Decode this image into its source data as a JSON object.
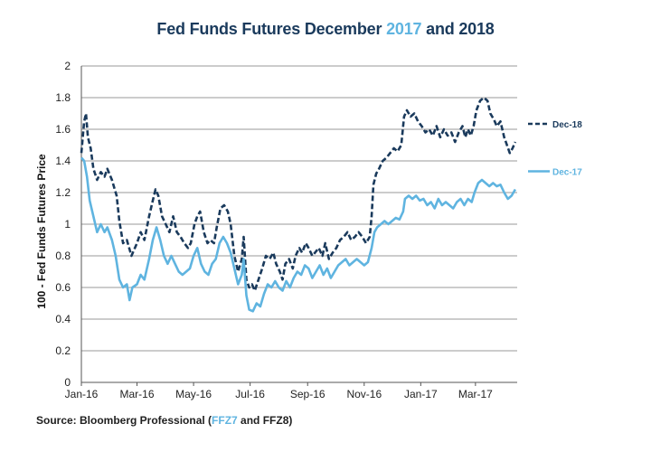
{
  "title": {
    "part1": "Fed Funds Futures December ",
    "part2": "2017",
    "part3": " and 2018"
  },
  "source": {
    "prefix": "Source: Bloomberg Professional (",
    "tickers": "FFZ7",
    "suffix": " and FFZ8)"
  },
  "colors": {
    "dec18": "#1a3a5c",
    "dec17": "#5fb4e0",
    "grid": "#9a9a9a"
  },
  "chart_data": {
    "type": "line",
    "title": "Fed Funds Futures December 2017 and 2018",
    "ylabel": "100 - Fed Funds Futures Price",
    "xlabel": "",
    "ylim": [
      0,
      2
    ],
    "yticks": [
      0,
      0.2,
      0.4,
      0.6,
      0.8,
      1,
      1.2,
      1.4,
      1.6,
      1.8,
      2
    ],
    "ytick_labels": [
      "0",
      "0.2",
      "0.4",
      "0.6",
      "0.8",
      "1",
      "1.2",
      "1.4",
      "1.6",
      "1.8",
      "2"
    ],
    "xtick_labels": [
      "Jan-16",
      "Mar-16",
      "May-16",
      "Jul-16",
      "Sep-16",
      "Nov-16",
      "Jan-17",
      "Mar-17"
    ],
    "xtick_dates": [
      "2016-01-01",
      "2016-03-01",
      "2016-05-01",
      "2016-07-01",
      "2016-09-01",
      "2016-11-01",
      "2017-01-01",
      "2017-03-01"
    ],
    "xlim": [
      "2016-01-01",
      "2017-04-15"
    ],
    "grid": "horizontal",
    "legend_placement": "right",
    "series": [
      {
        "name": "Dec-18",
        "style": "dashed",
        "color": "#1a3a5c",
        "points": [
          [
            "2016-01-01",
            1.45
          ],
          [
            "2016-01-04",
            1.65
          ],
          [
            "2016-01-06",
            1.7
          ],
          [
            "2016-01-08",
            1.55
          ],
          [
            "2016-01-11",
            1.48
          ],
          [
            "2016-01-14",
            1.35
          ],
          [
            "2016-01-18",
            1.28
          ],
          [
            "2016-01-22",
            1.33
          ],
          [
            "2016-01-26",
            1.3
          ],
          [
            "2016-01-29",
            1.35
          ],
          [
            "2016-02-03",
            1.28
          ],
          [
            "2016-02-08",
            1.18
          ],
          [
            "2016-02-11",
            1.02
          ],
          [
            "2016-02-15",
            0.88
          ],
          [
            "2016-02-19",
            0.9
          ],
          [
            "2016-02-24",
            0.8
          ],
          [
            "2016-03-01",
            0.88
          ],
          [
            "2016-03-05",
            0.95
          ],
          [
            "2016-03-09",
            0.9
          ],
          [
            "2016-03-14",
            1.05
          ],
          [
            "2016-03-18",
            1.15
          ],
          [
            "2016-03-21",
            1.22
          ],
          [
            "2016-03-24",
            1.18
          ],
          [
            "2016-03-28",
            1.05
          ],
          [
            "2016-04-01",
            1.0
          ],
          [
            "2016-04-05",
            0.95
          ],
          [
            "2016-04-09",
            1.05
          ],
          [
            "2016-04-13",
            0.95
          ],
          [
            "2016-04-17",
            0.92
          ],
          [
            "2016-04-21",
            0.88
          ],
          [
            "2016-04-25",
            0.85
          ],
          [
            "2016-04-28",
            0.88
          ],
          [
            "2016-05-02",
            1.0
          ],
          [
            "2016-05-05",
            1.05
          ],
          [
            "2016-05-08",
            1.08
          ],
          [
            "2016-05-12",
            0.95
          ],
          [
            "2016-05-16",
            0.88
          ],
          [
            "2016-05-19",
            0.9
          ],
          [
            "2016-05-23",
            0.88
          ],
          [
            "2016-05-26",
            0.98
          ],
          [
            "2016-05-30",
            1.1
          ],
          [
            "2016-06-03",
            1.12
          ],
          [
            "2016-06-07",
            1.08
          ],
          [
            "2016-06-10",
            1.0
          ],
          [
            "2016-06-14",
            0.8
          ],
          [
            "2016-06-18",
            0.7
          ],
          [
            "2016-06-22",
            0.78
          ],
          [
            "2016-06-24",
            0.92
          ],
          [
            "2016-06-27",
            0.65
          ],
          [
            "2016-06-30",
            0.6
          ],
          [
            "2016-07-03",
            0.62
          ],
          [
            "2016-07-06",
            0.58
          ],
          [
            "2016-07-10",
            0.65
          ],
          [
            "2016-07-14",
            0.72
          ],
          [
            "2016-07-18",
            0.8
          ],
          [
            "2016-07-22",
            0.78
          ],
          [
            "2016-07-26",
            0.82
          ],
          [
            "2016-07-29",
            0.75
          ],
          [
            "2016-08-02",
            0.7
          ],
          [
            "2016-08-05",
            0.65
          ],
          [
            "2016-08-08",
            0.75
          ],
          [
            "2016-08-12",
            0.78
          ],
          [
            "2016-08-16",
            0.72
          ],
          [
            "2016-08-19",
            0.8
          ],
          [
            "2016-08-23",
            0.85
          ],
          [
            "2016-08-26",
            0.82
          ],
          [
            "2016-08-30",
            0.88
          ],
          [
            "2016-09-02",
            0.85
          ],
          [
            "2016-09-06",
            0.8
          ],
          [
            "2016-09-09",
            0.82
          ],
          [
            "2016-09-13",
            0.85
          ],
          [
            "2016-09-17",
            0.8
          ],
          [
            "2016-09-20",
            0.88
          ],
          [
            "2016-09-24",
            0.78
          ],
          [
            "2016-09-28",
            0.82
          ],
          [
            "2016-10-02",
            0.85
          ],
          [
            "2016-10-06",
            0.9
          ],
          [
            "2016-10-10",
            0.92
          ],
          [
            "2016-10-14",
            0.95
          ],
          [
            "2016-10-18",
            0.9
          ],
          [
            "2016-10-22",
            0.92
          ],
          [
            "2016-10-26",
            0.95
          ],
          [
            "2016-10-30",
            0.92
          ],
          [
            "2016-11-03",
            0.88
          ],
          [
            "2016-11-07",
            0.92
          ],
          [
            "2016-11-09",
            1.05
          ],
          [
            "2016-11-11",
            1.25
          ],
          [
            "2016-11-14",
            1.32
          ],
          [
            "2016-11-17",
            1.35
          ],
          [
            "2016-11-21",
            1.4
          ],
          [
            "2016-11-25",
            1.42
          ],
          [
            "2016-11-29",
            1.45
          ],
          [
            "2016-12-03",
            1.48
          ],
          [
            "2016-12-07",
            1.46
          ],
          [
            "2016-12-11",
            1.5
          ],
          [
            "2016-12-14",
            1.68
          ],
          [
            "2016-12-17",
            1.72
          ],
          [
            "2016-12-21",
            1.68
          ],
          [
            "2016-12-25",
            1.7
          ],
          [
            "2016-12-29",
            1.65
          ],
          [
            "2017-01-02",
            1.62
          ],
          [
            "2017-01-06",
            1.58
          ],
          [
            "2017-01-10",
            1.6
          ],
          [
            "2017-01-14",
            1.56
          ],
          [
            "2017-01-18",
            1.62
          ],
          [
            "2017-01-22",
            1.55
          ],
          [
            "2017-01-26",
            1.6
          ],
          [
            "2017-01-30",
            1.56
          ],
          [
            "2017-02-03",
            1.58
          ],
          [
            "2017-02-07",
            1.52
          ],
          [
            "2017-02-11",
            1.58
          ],
          [
            "2017-02-15",
            1.62
          ],
          [
            "2017-02-18",
            1.55
          ],
          [
            "2017-02-21",
            1.6
          ],
          [
            "2017-02-24",
            1.56
          ],
          [
            "2017-02-27",
            1.62
          ],
          [
            "2017-03-02",
            1.72
          ],
          [
            "2017-03-06",
            1.78
          ],
          [
            "2017-03-10",
            1.8
          ],
          [
            "2017-03-14",
            1.78
          ],
          [
            "2017-03-17",
            1.7
          ],
          [
            "2017-03-21",
            1.66
          ],
          [
            "2017-03-24",
            1.62
          ],
          [
            "2017-03-28",
            1.65
          ],
          [
            "2017-04-01",
            1.55
          ],
          [
            "2017-04-04",
            1.5
          ],
          [
            "2017-04-07",
            1.45
          ],
          [
            "2017-04-10",
            1.48
          ],
          [
            "2017-04-13",
            1.52
          ]
        ]
      },
      {
        "name": "Dec-17",
        "style": "solid",
        "color": "#5fb4e0",
        "points": [
          [
            "2016-01-01",
            1.42
          ],
          [
            "2016-01-04",
            1.4
          ],
          [
            "2016-01-07",
            1.3
          ],
          [
            "2016-01-10",
            1.15
          ],
          [
            "2016-01-14",
            1.05
          ],
          [
            "2016-01-18",
            0.95
          ],
          [
            "2016-01-22",
            1.0
          ],
          [
            "2016-01-26",
            0.95
          ],
          [
            "2016-01-29",
            0.98
          ],
          [
            "2016-02-03",
            0.9
          ],
          [
            "2016-02-07",
            0.8
          ],
          [
            "2016-02-11",
            0.65
          ],
          [
            "2016-02-15",
            0.6
          ],
          [
            "2016-02-19",
            0.62
          ],
          [
            "2016-02-22",
            0.52
          ],
          [
            "2016-02-25",
            0.6
          ],
          [
            "2016-03-01",
            0.62
          ],
          [
            "2016-03-05",
            0.68
          ],
          [
            "2016-03-09",
            0.65
          ],
          [
            "2016-03-14",
            0.78
          ],
          [
            "2016-03-18",
            0.9
          ],
          [
            "2016-03-22",
            0.98
          ],
          [
            "2016-03-26",
            0.9
          ],
          [
            "2016-03-30",
            0.8
          ],
          [
            "2016-04-03",
            0.75
          ],
          [
            "2016-04-07",
            0.8
          ],
          [
            "2016-04-11",
            0.75
          ],
          [
            "2016-04-15",
            0.7
          ],
          [
            "2016-04-19",
            0.68
          ],
          [
            "2016-04-23",
            0.7
          ],
          [
            "2016-04-27",
            0.72
          ],
          [
            "2016-05-01",
            0.8
          ],
          [
            "2016-05-05",
            0.85
          ],
          [
            "2016-05-09",
            0.75
          ],
          [
            "2016-05-13",
            0.7
          ],
          [
            "2016-05-17",
            0.68
          ],
          [
            "2016-05-21",
            0.75
          ],
          [
            "2016-05-25",
            0.78
          ],
          [
            "2016-05-29",
            0.88
          ],
          [
            "2016-06-02",
            0.92
          ],
          [
            "2016-06-06",
            0.88
          ],
          [
            "2016-06-10",
            0.82
          ],
          [
            "2016-06-14",
            0.72
          ],
          [
            "2016-06-18",
            0.62
          ],
          [
            "2016-06-22",
            0.68
          ],
          [
            "2016-06-24",
            0.78
          ],
          [
            "2016-06-27",
            0.55
          ],
          [
            "2016-06-30",
            0.46
          ],
          [
            "2016-07-04",
            0.45
          ],
          [
            "2016-07-08",
            0.5
          ],
          [
            "2016-07-12",
            0.48
          ],
          [
            "2016-07-16",
            0.56
          ],
          [
            "2016-07-20",
            0.62
          ],
          [
            "2016-07-24",
            0.6
          ],
          [
            "2016-07-28",
            0.64
          ],
          [
            "2016-08-01",
            0.6
          ],
          [
            "2016-08-05",
            0.58
          ],
          [
            "2016-08-09",
            0.64
          ],
          [
            "2016-08-13",
            0.6
          ],
          [
            "2016-08-17",
            0.66
          ],
          [
            "2016-08-21",
            0.7
          ],
          [
            "2016-08-25",
            0.68
          ],
          [
            "2016-08-29",
            0.74
          ],
          [
            "2016-09-02",
            0.72
          ],
          [
            "2016-09-06",
            0.66
          ],
          [
            "2016-09-10",
            0.7
          ],
          [
            "2016-09-14",
            0.74
          ],
          [
            "2016-09-18",
            0.68
          ],
          [
            "2016-09-22",
            0.72
          ],
          [
            "2016-09-26",
            0.66
          ],
          [
            "2016-09-30",
            0.7
          ],
          [
            "2016-10-04",
            0.74
          ],
          [
            "2016-10-08",
            0.76
          ],
          [
            "2016-10-12",
            0.78
          ],
          [
            "2016-10-16",
            0.74
          ],
          [
            "2016-10-20",
            0.76
          ],
          [
            "2016-10-24",
            0.78
          ],
          [
            "2016-10-28",
            0.76
          ],
          [
            "2016-11-01",
            0.74
          ],
          [
            "2016-11-05",
            0.76
          ],
          [
            "2016-11-09",
            0.85
          ],
          [
            "2016-11-12",
            0.95
          ],
          [
            "2016-11-15",
            0.98
          ],
          [
            "2016-11-19",
            1.0
          ],
          [
            "2016-11-23",
            1.02
          ],
          [
            "2016-11-27",
            1.0
          ],
          [
            "2016-12-01",
            1.02
          ],
          [
            "2016-12-05",
            1.04
          ],
          [
            "2016-12-09",
            1.03
          ],
          [
            "2016-12-13",
            1.08
          ],
          [
            "2016-12-15",
            1.16
          ],
          [
            "2016-12-19",
            1.18
          ],
          [
            "2016-12-23",
            1.16
          ],
          [
            "2016-12-27",
            1.18
          ],
          [
            "2016-12-31",
            1.15
          ],
          [
            "2017-01-04",
            1.16
          ],
          [
            "2017-01-08",
            1.12
          ],
          [
            "2017-01-12",
            1.14
          ],
          [
            "2017-01-16",
            1.1
          ],
          [
            "2017-01-20",
            1.16
          ],
          [
            "2017-01-24",
            1.12
          ],
          [
            "2017-01-28",
            1.14
          ],
          [
            "2017-02-01",
            1.12
          ],
          [
            "2017-02-05",
            1.1
          ],
          [
            "2017-02-09",
            1.14
          ],
          [
            "2017-02-13",
            1.16
          ],
          [
            "2017-02-17",
            1.12
          ],
          [
            "2017-02-21",
            1.16
          ],
          [
            "2017-02-25",
            1.14
          ],
          [
            "2017-02-28",
            1.2
          ],
          [
            "2017-03-04",
            1.26
          ],
          [
            "2017-03-08",
            1.28
          ],
          [
            "2017-03-12",
            1.26
          ],
          [
            "2017-03-16",
            1.24
          ],
          [
            "2017-03-20",
            1.26
          ],
          [
            "2017-03-24",
            1.24
          ],
          [
            "2017-03-28",
            1.25
          ],
          [
            "2017-04-01",
            1.2
          ],
          [
            "2017-04-05",
            1.16
          ],
          [
            "2017-04-09",
            1.18
          ],
          [
            "2017-04-13",
            1.22
          ]
        ]
      }
    ]
  }
}
